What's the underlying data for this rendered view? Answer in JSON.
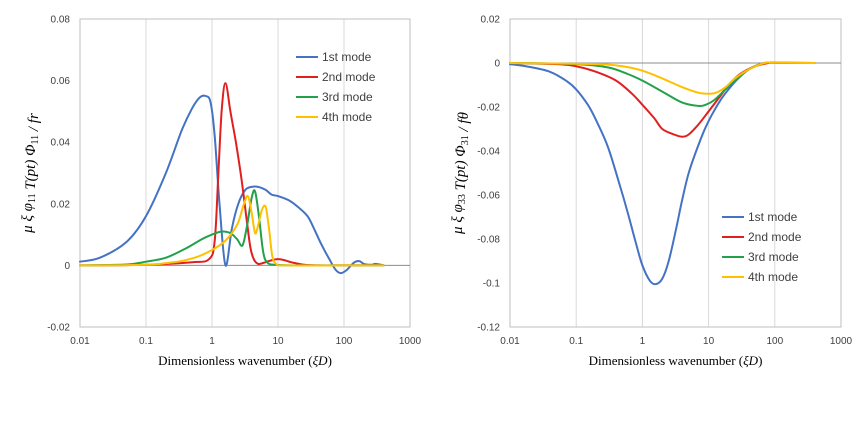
{
  "chart_data": [
    {
      "type": "line",
      "xscale": "log",
      "xlim": [
        0.01,
        1000
      ],
      "ylim": [
        -0.02,
        0.08
      ],
      "xlabel": "Dimensionless wavenumber (ξD)",
      "ylabel": "μ ξ φ11 T(pt) Φ11 / fr",
      "xticks": [
        "0.01",
        "0.1",
        "1",
        "10",
        "100",
        "1000"
      ],
      "yticks": [
        "-0.02",
        "0",
        "0.02",
        "0.04",
        "0.06",
        "0.08"
      ],
      "grid": "vertical",
      "legend_position": "top-right",
      "series": [
        {
          "name": "1st mode",
          "color": "#4472c4",
          "points": [
            [
              0.01,
              0.0012
            ],
            [
              0.02,
              0.0025
            ],
            [
              0.05,
              0.0075
            ],
            [
              0.1,
              0.016
            ],
            [
              0.2,
              0.03
            ],
            [
              0.35,
              0.044
            ],
            [
              0.5,
              0.051
            ],
            [
              0.65,
              0.0545
            ],
            [
              0.8,
              0.055
            ],
            [
              0.95,
              0.053
            ],
            [
              1.1,
              0.042
            ],
            [
              1.3,
              0.02
            ],
            [
              1.6,
              0.0
            ],
            [
              2.0,
              0.012
            ],
            [
              2.5,
              0.02
            ],
            [
              3.2,
              0.0245
            ],
            [
              4.0,
              0.0255
            ],
            [
              5.0,
              0.0255
            ],
            [
              6.5,
              0.0245
            ],
            [
              8.0,
              0.023
            ],
            [
              10,
              0.0225
            ],
            [
              15,
              0.021
            ],
            [
              20,
              0.019
            ],
            [
              28,
              0.016
            ],
            [
              35,
              0.012
            ],
            [
              45,
              0.007
            ],
            [
              60,
              0.002
            ],
            [
              75,
              -0.0015
            ],
            [
              90,
              -0.0025
            ],
            [
              110,
              -0.0015
            ],
            [
              140,
              0.0008
            ],
            [
              170,
              0.0014
            ],
            [
              200,
              0.0005
            ],
            [
              260,
              0.0002
            ],
            [
              300,
              0.0005
            ],
            [
              400,
              0.0
            ]
          ]
        },
        {
          "name": "2nd mode",
          "color": "#e0201f",
          "points": [
            [
              0.01,
              0.0
            ],
            [
              0.1,
              0.0002
            ],
            [
              0.5,
              0.001
            ],
            [
              0.9,
              0.002
            ],
            [
              1.1,
              0.008
            ],
            [
              1.25,
              0.03
            ],
            [
              1.4,
              0.05
            ],
            [
              1.6,
              0.0592
            ],
            [
              1.9,
              0.05
            ],
            [
              2.3,
              0.04
            ],
            [
              2.8,
              0.028
            ],
            [
              3.3,
              0.016
            ],
            [
              3.8,
              0.006
            ],
            [
              4.3,
              0.002
            ],
            [
              5.0,
              0.0005
            ],
            [
              6.0,
              0.0008
            ],
            [
              7.5,
              0.0015
            ],
            [
              9.5,
              0.002
            ],
            [
              12,
              0.0018
            ],
            [
              16,
              0.001
            ],
            [
              25,
              0.0002
            ],
            [
              40,
              0.0
            ],
            [
              100,
              0.0
            ],
            [
              400,
              0.0
            ]
          ]
        },
        {
          "name": "3rd mode",
          "color": "#22a14a",
          "points": [
            [
              0.01,
              0.0
            ],
            [
              0.05,
              0.0003
            ],
            [
              0.1,
              0.0012
            ],
            [
              0.2,
              0.0025
            ],
            [
              0.4,
              0.0055
            ],
            [
              0.7,
              0.0085
            ],
            [
              1.0,
              0.01
            ],
            [
              1.4,
              0.011
            ],
            [
              1.9,
              0.0105
            ],
            [
              2.4,
              0.0085
            ],
            [
              2.9,
              0.0065
            ],
            [
              3.4,
              0.013
            ],
            [
              4.0,
              0.022
            ],
            [
              4.5,
              0.024
            ],
            [
              5.2,
              0.015
            ],
            [
              6.0,
              0.004
            ],
            [
              7.0,
              0.0008
            ],
            [
              9,
              0.0002
            ],
            [
              15,
              0.0
            ],
            [
              100,
              0.0
            ],
            [
              400,
              0.0
            ]
          ]
        },
        {
          "name": "4th mode",
          "color": "#ffc000",
          "points": [
            [
              0.01,
              0.0
            ],
            [
              0.1,
              0.0002
            ],
            [
              0.3,
              0.0012
            ],
            [
              0.6,
              0.0028
            ],
            [
              1.0,
              0.005
            ],
            [
              1.5,
              0.0075
            ],
            [
              2.0,
              0.0105
            ],
            [
              2.5,
              0.014
            ],
            [
              3.0,
              0.0195
            ],
            [
              3.5,
              0.0225
            ],
            [
              4.0,
              0.017
            ],
            [
              4.5,
              0.0105
            ],
            [
              5.0,
              0.013
            ],
            [
              5.7,
              0.018
            ],
            [
              6.5,
              0.019
            ],
            [
              7.3,
              0.012
            ],
            [
              8.2,
              0.003
            ],
            [
              9.5,
              0.0004
            ],
            [
              13,
              0.0
            ],
            [
              100,
              0.0
            ],
            [
              400,
              0.0
            ]
          ]
        }
      ]
    },
    {
      "type": "line",
      "xscale": "log",
      "xlim": [
        0.01,
        1000
      ],
      "ylim": [
        -0.12,
        0.02
      ],
      "xlabel": "Dimensionless wavenumber (ξD)",
      "ylabel": "μ ξ φ33 T(pt) Φ31 / fθ",
      "xticks": [
        "0.01",
        "0.1",
        "1",
        "10",
        "100",
        "1000"
      ],
      "yticks": [
        "-0.12",
        "-0.1",
        "-0.08",
        "-0.06",
        "-0.04",
        "-0.02",
        "0",
        "0.02"
      ],
      "grid": "vertical",
      "legend_position": "bottom-right",
      "series": [
        {
          "name": "1st mode",
          "color": "#4472c4",
          "points": [
            [
              0.01,
              -0.0005
            ],
            [
              0.02,
              -0.0018
            ],
            [
              0.04,
              -0.004
            ],
            [
              0.07,
              -0.008
            ],
            [
              0.1,
              -0.012
            ],
            [
              0.15,
              -0.019
            ],
            [
              0.2,
              -0.026
            ],
            [
              0.3,
              -0.038
            ],
            [
              0.45,
              -0.055
            ],
            [
              0.6,
              -0.068
            ],
            [
              0.8,
              -0.082
            ],
            [
              1.0,
              -0.092
            ],
            [
              1.3,
              -0.099
            ],
            [
              1.6,
              -0.1005
            ],
            [
              2.0,
              -0.098
            ],
            [
              2.5,
              -0.09
            ],
            [
              3.2,
              -0.076
            ],
            [
              4.0,
              -0.062
            ],
            [
              5.0,
              -0.05
            ],
            [
              6.5,
              -0.04
            ],
            [
              8.5,
              -0.031
            ],
            [
              11,
              -0.024
            ],
            [
              15,
              -0.017
            ],
            [
              20,
              -0.012
            ],
            [
              28,
              -0.007
            ],
            [
              40,
              -0.003
            ],
            [
              60,
              -0.0005
            ],
            [
              80,
              0.0002
            ],
            [
              100,
              0.0001
            ],
            [
              150,
              0.0
            ],
            [
              400,
              0.0
            ]
          ]
        },
        {
          "name": "2nd mode",
          "color": "#e0201f",
          "points": [
            [
              0.01,
              0.0
            ],
            [
              0.05,
              -0.0005
            ],
            [
              0.1,
              -0.0015
            ],
            [
              0.2,
              -0.004
            ],
            [
              0.4,
              -0.008
            ],
            [
              0.7,
              -0.014
            ],
            [
              1.0,
              -0.019
            ],
            [
              1.5,
              -0.025
            ],
            [
              2.0,
              -0.03
            ],
            [
              3.0,
              -0.0325
            ],
            [
              4.0,
              -0.0335
            ],
            [
              5.0,
              -0.0325
            ],
            [
              7.0,
              -0.028
            ],
            [
              10,
              -0.022
            ],
            [
              15,
              -0.015
            ],
            [
              20,
              -0.01
            ],
            [
              30,
              -0.005
            ],
            [
              50,
              -0.0015
            ],
            [
              80,
              0.0
            ],
            [
              100,
              0.0001
            ],
            [
              400,
              0.0
            ]
          ]
        },
        {
          "name": "3rd mode",
          "color": "#22a14a",
          "points": [
            [
              0.01,
              0.0
            ],
            [
              0.1,
              -0.0005
            ],
            [
              0.3,
              -0.002
            ],
            [
              0.6,
              -0.005
            ],
            [
              1.0,
              -0.008
            ],
            [
              2.0,
              -0.013
            ],
            [
              4.0,
              -0.018
            ],
            [
              7.0,
              -0.0195
            ],
            [
              9.0,
              -0.019
            ],
            [
              12,
              -0.017
            ],
            [
              18,
              -0.012
            ],
            [
              25,
              -0.008
            ],
            [
              40,
              -0.003
            ],
            [
              70,
              0.0
            ],
            [
              100,
              0.0001
            ],
            [
              400,
              0.0
            ]
          ]
        },
        {
          "name": "4th mode",
          "color": "#ffc000",
          "points": [
            [
              0.01,
              0.0
            ],
            [
              0.2,
              -0.0005
            ],
            [
              0.5,
              -0.0015
            ],
            [
              1.0,
              -0.0035
            ],
            [
              2.0,
              -0.007
            ],
            [
              4.0,
              -0.011
            ],
            [
              7.0,
              -0.0135
            ],
            [
              10,
              -0.014
            ],
            [
              13,
              -0.0135
            ],
            [
              18,
              -0.011
            ],
            [
              25,
              -0.007
            ],
            [
              40,
              -0.003
            ],
            [
              70,
              0.0
            ],
            [
              100,
              0.0001
            ],
            [
              400,
              0.0
            ]
          ]
        }
      ]
    }
  ]
}
